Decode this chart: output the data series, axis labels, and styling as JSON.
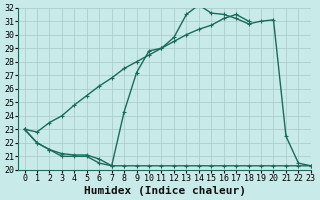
{
  "xlabel": "Humidex (Indice chaleur)",
  "bg_color": "#c8eae8",
  "grid_color": "#a8c8c4",
  "line_color": "#1a6b5a",
  "x_values": [
    0,
    1,
    2,
    3,
    4,
    5,
    6,
    7,
    8,
    9,
    10,
    11,
    12,
    13,
    14,
    15,
    16,
    17,
    18,
    19,
    20,
    21,
    22,
    23
  ],
  "y1_values": [
    23.0,
    22.0,
    21.5,
    21.0,
    21.0,
    21.0,
    20.5,
    20.3,
    20.3,
    20.3,
    20.3,
    20.3,
    20.3,
    20.3,
    20.3,
    20.3,
    20.3,
    20.3,
    20.3,
    20.3,
    20.3,
    20.3,
    20.3,
    20.3
  ],
  "y2_values": [
    23.0,
    22.0,
    21.5,
    21.2,
    21.1,
    21.1,
    20.8,
    20.3,
    24.3,
    27.2,
    28.8,
    29.0,
    29.8,
    31.5,
    32.2,
    31.6,
    31.5,
    31.2,
    30.8,
    31.0,
    31.1,
    22.5,
    20.5,
    20.3
  ],
  "y3_values": [
    23.0,
    22.8,
    23.5,
    24.0,
    24.8,
    25.5,
    26.2,
    26.8,
    27.5,
    28.0,
    28.5,
    29.0,
    29.5,
    30.0,
    30.4,
    30.7,
    31.2,
    31.5,
    31.0,
    20.5,
    20.3,
    20.3,
    20.3,
    20.3
  ],
  "ylim": [
    20,
    32
  ],
  "xlim": [
    -0.5,
    23
  ],
  "yticks": [
    20,
    21,
    22,
    23,
    24,
    25,
    26,
    27,
    28,
    29,
    30,
    31,
    32
  ],
  "xticks": [
    0,
    1,
    2,
    3,
    4,
    5,
    6,
    7,
    8,
    9,
    10,
    11,
    12,
    13,
    14,
    15,
    16,
    17,
    18,
    19,
    20,
    21,
    22,
    23
  ],
  "xlabel_fontsize": 8,
  "tick_fontsize": 6,
  "linewidth": 1.0,
  "marker": "+"
}
